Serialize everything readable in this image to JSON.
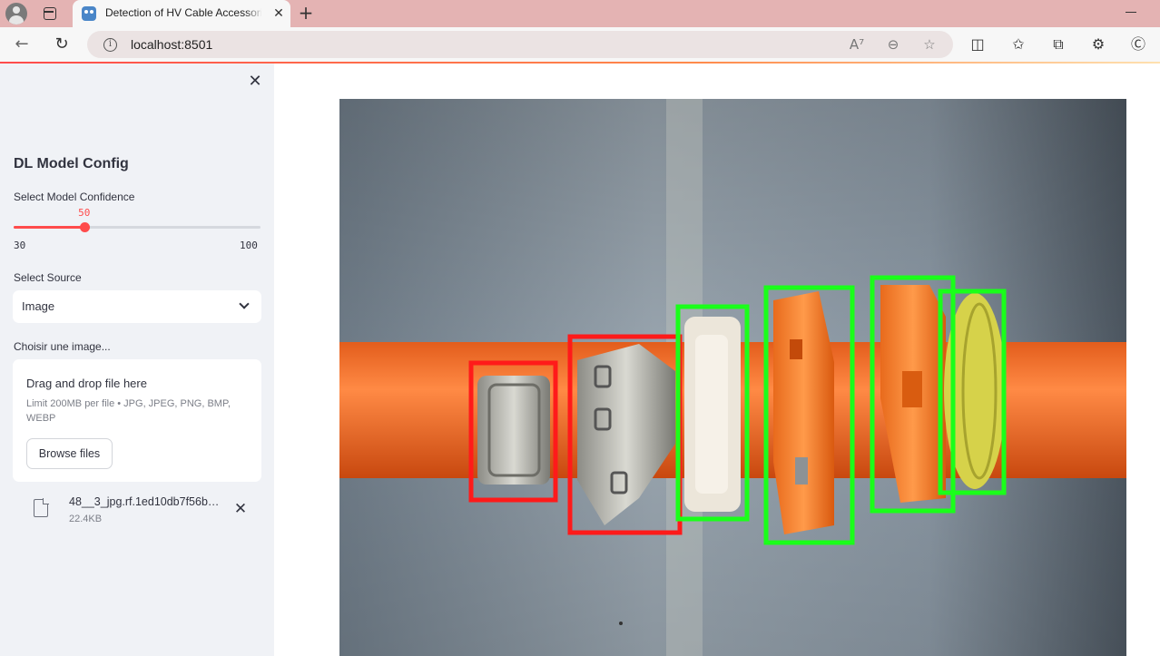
{
  "browser": {
    "tab_title": "Detection of HV Cable Accessories",
    "tab_close": "✕",
    "new_tab": "+",
    "url": "localhost:8501",
    "info_glyph": "i",
    "icons": [
      "back-icon",
      "reload-icon",
      "read-aloud-icon",
      "zoom-out-icon",
      "favorite-icon",
      "split-screen-icon",
      "favorites-icon",
      "collections-icon",
      "extensions-icon",
      "copilot-icon"
    ]
  },
  "sidebar": {
    "close_glyph": "✕",
    "title": "DL Model Config",
    "confidence": {
      "label": "Select Model Confidence",
      "value": 50,
      "value_text": "50",
      "min": 30,
      "max": 100,
      "min_text": "30",
      "max_text": "100",
      "accent_color": "#ff4b4b"
    },
    "source": {
      "label": "Select Source",
      "selected": "Image"
    },
    "uploader": {
      "label": "Choisir une image...",
      "drop_text": "Drag and drop file here",
      "limit_text": "Limit 200MB per file • JPG, JPEG, PNG, BMP, WEBP",
      "browse_label": "Browse files"
    },
    "file": {
      "name": "48__3_jpg.rf.1ed10db7f56b…",
      "size": "22.4KB",
      "remove_glyph": "✕"
    }
  },
  "detections": {
    "colors": {
      "defect": "#ff1a1a",
      "ok": "#1aff1a"
    }
  }
}
